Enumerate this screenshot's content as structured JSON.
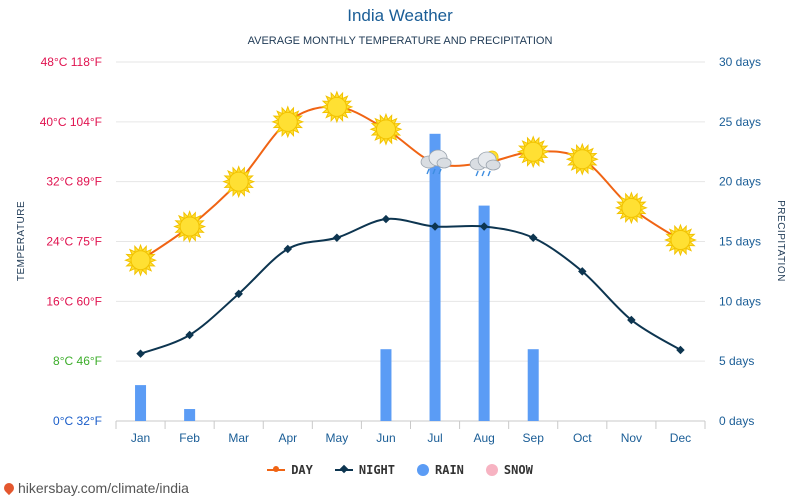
{
  "title": "India Weather",
  "subtitle": "AVERAGE MONTHLY TEMPERATURE AND PRECIPITATION",
  "source": "hikersbay.com/climate/india",
  "legend": {
    "day": "DAY",
    "night": "NIGHT",
    "rain": "RAIN",
    "snow": "SNOW"
  },
  "colors": {
    "day": "#f06414",
    "night": "#0d3550",
    "rain": "#5b9cf5",
    "snow": "#f7b3c2",
    "sun": "#ffe033",
    "sun_edge": "#f2c200"
  },
  "chart_data": {
    "type": "line",
    "categories": [
      "Jan",
      "Feb",
      "Mar",
      "Apr",
      "May",
      "Jun",
      "Jul",
      "Aug",
      "Sep",
      "Oct",
      "Nov",
      "Dec"
    ],
    "series": [
      {
        "name": "DAY",
        "axis": "temperature",
        "values": [
          21.5,
          26,
          32,
          40,
          42,
          39,
          34.5,
          34.5,
          36,
          35,
          28.5,
          24.2
        ]
      },
      {
        "name": "NIGHT",
        "axis": "temperature",
        "values": [
          9,
          11.5,
          17,
          23,
          24.5,
          27,
          26,
          26,
          24.5,
          20,
          13.5,
          9.5
        ]
      },
      {
        "name": "RAIN",
        "type": "bar",
        "axis": "precipitation",
        "values": [
          3,
          1,
          0,
          0,
          0,
          6,
          24,
          18,
          6,
          0,
          0,
          0
        ]
      },
      {
        "name": "SNOW",
        "type": "bar",
        "axis": "precipitation",
        "values": [
          0,
          0,
          0,
          0,
          0,
          0,
          0,
          0,
          0,
          0,
          0,
          0
        ]
      }
    ],
    "weather_icons": [
      "sun",
      "sun",
      "sun",
      "sun",
      "sun",
      "sun",
      "cloud-rain",
      "cloud-sun-rain",
      "sun",
      "sun",
      "sun",
      "sun"
    ],
    "ylabel_left": "TEMPERATURE",
    "ylabel_right": "PRECIPITATION",
    "ylim_left": [
      0,
      48
    ],
    "ylim_right": [
      0,
      30
    ],
    "yticks_left": [
      {
        "label": "0°C 32°F",
        "value": 0,
        "color": "#1a5dc9"
      },
      {
        "label": "8°C 46°F",
        "value": 8,
        "color": "#3dae2b"
      },
      {
        "label": "16°C 60°F",
        "value": 16,
        "color": "#e0124f"
      },
      {
        "label": "24°C 75°F",
        "value": 24,
        "color": "#e0124f"
      },
      {
        "label": "32°C 89°F",
        "value": 32,
        "color": "#e0124f"
      },
      {
        "label": "40°C 104°F",
        "value": 40,
        "color": "#e0124f"
      },
      {
        "label": "48°C 118°F",
        "value": 48,
        "color": "#e0124f"
      }
    ],
    "yticks_right": [
      {
        "label": "0 days",
        "value": 0
      },
      {
        "label": "5 days",
        "value": 5
      },
      {
        "label": "10 days",
        "value": 10
      },
      {
        "label": "15 days",
        "value": 15
      },
      {
        "label": "20 days",
        "value": 20
      },
      {
        "label": "25 days",
        "value": 25
      },
      {
        "label": "30 days",
        "value": 30
      }
    ],
    "grid": true,
    "legend_position": "bottom"
  }
}
